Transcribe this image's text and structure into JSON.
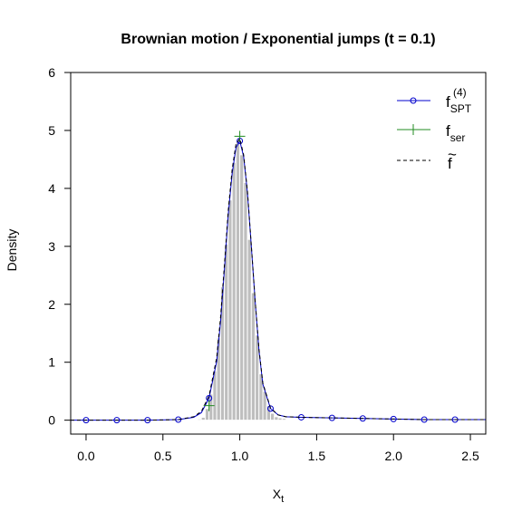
{
  "chart_data": {
    "type": "histogram-with-lines",
    "title": "Brownian motion / Exponential jumps (t = 0.1)",
    "xlabel": "X",
    "xlabel_sub": "t",
    "ylabel": "Density",
    "xlim": [
      -0.1,
      2.6
    ],
    "ylim": [
      -0.24,
      6.0
    ],
    "x_ticks": [
      0.0,
      0.5,
      1.0,
      1.5,
      2.0,
      2.5
    ],
    "x_tick_labels": [
      "0.0",
      "0.5",
      "1.0",
      "1.5",
      "2.0",
      "2.5"
    ],
    "y_ticks": [
      0,
      1,
      2,
      3,
      4,
      5,
      6
    ],
    "y_tick_labels": [
      "0",
      "1",
      "2",
      "3",
      "4",
      "5",
      "6"
    ],
    "histogram": {
      "color": "#bebebe",
      "bin_width": 0.025,
      "bins": [
        [
          0.725,
          0.02
        ],
        [
          0.75,
          0.05
        ],
        [
          0.775,
          0.2
        ],
        [
          0.8,
          0.45
        ],
        [
          0.825,
          0.85
        ],
        [
          0.85,
          1.42
        ],
        [
          0.875,
          2.3
        ],
        [
          0.9,
          3.04
        ],
        [
          0.925,
          3.8
        ],
        [
          0.95,
          4.45
        ],
        [
          0.975,
          4.82
        ],
        [
          1.0,
          4.58
        ],
        [
          1.025,
          4.1
        ],
        [
          1.05,
          3.12
        ],
        [
          1.075,
          2.2
        ],
        [
          1.1,
          1.47
        ],
        [
          1.125,
          0.8
        ],
        [
          1.15,
          0.5
        ],
        [
          1.175,
          0.25
        ],
        [
          1.2,
          0.12
        ],
        [
          1.225,
          0.06
        ],
        [
          1.25,
          0.04
        ],
        [
          1.275,
          0.03
        ]
      ]
    },
    "series": [
      {
        "name": "f",
        "name_sub": "SPT",
        "name_sup": "(4)",
        "color": "#0000cc",
        "style": "solid-line-circles",
        "x": [
          -0.1,
          0.0,
          0.2,
          0.4,
          0.6,
          0.7,
          0.75,
          0.8,
          0.85,
          0.875,
          0.9,
          0.925,
          0.95,
          0.975,
          1.0,
          1.025,
          1.05,
          1.075,
          1.1,
          1.125,
          1.15,
          1.2,
          1.25,
          1.3,
          1.4,
          1.6,
          1.8,
          2.0,
          2.2,
          2.4,
          2.6
        ],
        "y": [
          0.0,
          0.0,
          0.0,
          0.0,
          0.01,
          0.05,
          0.13,
          0.38,
          1.02,
          1.7,
          2.6,
          3.55,
          4.25,
          4.7,
          4.82,
          4.55,
          3.92,
          3.0,
          2.05,
          1.2,
          0.62,
          0.2,
          0.09,
          0.06,
          0.05,
          0.04,
          0.03,
          0.02,
          0.01,
          0.01,
          0.01
        ],
        "marker_x": [
          0.0,
          0.2,
          0.4,
          0.6,
          0.8,
          1.0,
          1.2,
          1.4,
          1.6,
          1.8,
          2.0,
          2.2,
          2.4
        ],
        "marker_y": [
          0.0,
          0.0,
          0.0,
          0.01,
          0.38,
          4.82,
          0.2,
          0.05,
          0.04,
          0.03,
          0.02,
          0.01,
          0.01
        ]
      },
      {
        "name": "f",
        "name_sub": "ser",
        "color": "#228b22",
        "style": "plus-markers",
        "marker_x": [
          0.8,
          1.0
        ],
        "marker_y": [
          0.25,
          4.9
        ]
      },
      {
        "name": "f",
        "name_accent": "~",
        "color": "#000000",
        "style": "dashed-line",
        "x": [
          -0.1,
          0.0,
          0.2,
          0.4,
          0.6,
          0.7,
          0.75,
          0.8,
          0.85,
          0.875,
          0.9,
          0.925,
          0.95,
          0.975,
          1.0,
          1.025,
          1.05,
          1.075,
          1.1,
          1.125,
          1.15,
          1.2,
          1.25,
          1.3,
          1.4,
          1.6,
          1.8,
          2.0,
          2.2,
          2.4,
          2.6
        ],
        "y": [
          0.0,
          0.0,
          0.0,
          0.0,
          0.01,
          0.06,
          0.15,
          0.42,
          1.08,
          1.78,
          2.68,
          3.62,
          4.32,
          4.76,
          4.86,
          4.58,
          3.95,
          3.02,
          2.06,
          1.22,
          0.64,
          0.21,
          0.09,
          0.06,
          0.05,
          0.04,
          0.03,
          0.02,
          0.01,
          0.01,
          0.01
        ]
      }
    ],
    "legend_position": "top-right"
  }
}
